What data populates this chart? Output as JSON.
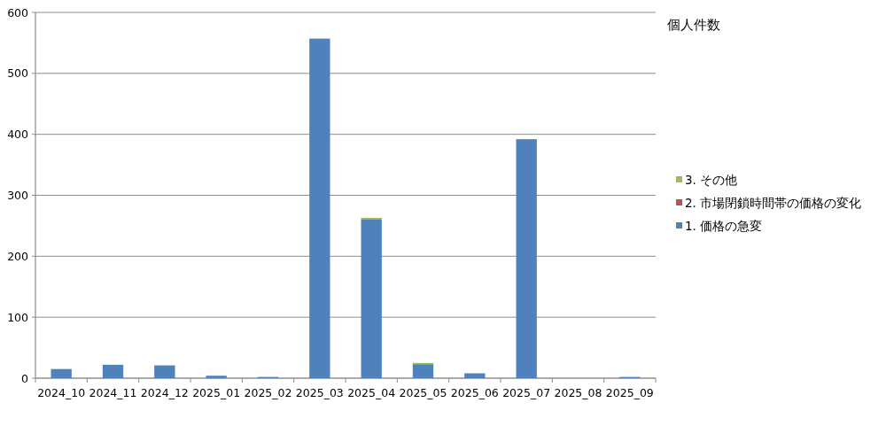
{
  "chart_data": {
    "type": "bar",
    "title": "個人件数",
    "categories": [
      "2024_10",
      "2024_11",
      "2024_12",
      "2025_01",
      "2025_02",
      "2025_03",
      "2025_04",
      "2025_05",
      "2025_06",
      "2025_07",
      "2025_08",
      "2025_09"
    ],
    "stacked": true,
    "series": [
      {
        "name": "1. 価格の急変",
        "color": "#4f81bd",
        "values": [
          15,
          22,
          21,
          4,
          2,
          557,
          261,
          23,
          8,
          392,
          0,
          2
        ]
      },
      {
        "name": "2. 市場閉鎖時間帯の価格の変化",
        "color": "#c0504d",
        "values": [
          0,
          0,
          0,
          0,
          0,
          0,
          0,
          0,
          0,
          0,
          0,
          0
        ]
      },
      {
        "name": "3. その他",
        "color": "#9bbb59",
        "values": [
          0,
          0,
          0,
          0,
          0,
          0,
          2,
          2,
          0,
          0,
          0,
          0
        ]
      }
    ],
    "ylim": [
      0,
      600
    ],
    "yticks": [
      0,
      100,
      200,
      300,
      400,
      500,
      600
    ],
    "grid": "y",
    "legend": "right"
  }
}
